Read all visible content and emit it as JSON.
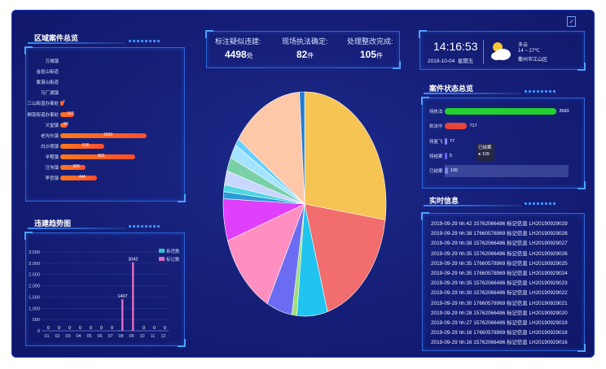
{
  "header": {
    "stats": [
      {
        "label": "标注疑似违建:",
        "value": "4498",
        "unit": "处"
      },
      {
        "label": "现场执法确定:",
        "value": "82",
        "unit": "件"
      },
      {
        "label": "处理整改完成:",
        "value": "105",
        "unit": "件"
      }
    ]
  },
  "clock": {
    "time": "14:16:53",
    "date": "2019-10-04",
    "weekday": "星期五"
  },
  "weather": {
    "condition": "多云",
    "temp": "14 ~ 27℃",
    "location": "衢州市江山区",
    "icon": "cloud-sun-icon"
  },
  "region_panel": {
    "title": "区域案件总览",
    "items": [
      {
        "name": "万城镇",
        "value": null
      },
      {
        "name": "金垣山街道",
        "value": null
      },
      {
        "name": "紫港山街道",
        "value": null
      },
      {
        "name": "马厂湖镇",
        "value": null
      },
      {
        "name": "三山街道办事处",
        "value": 7
      },
      {
        "name": "柳南街道办事处",
        "value": 163
      },
      {
        "name": "义堂镇",
        "value": 84
      },
      {
        "name": "老沟头镇",
        "value": 1039
      },
      {
        "name": "白沙塔镇",
        "value": 536
      },
      {
        "name": "半程镇",
        "value": 903
      },
      {
        "name": "汪沟镇",
        "value": 306
      },
      {
        "name": "李官镇",
        "value": 444
      }
    ],
    "max": 1200
  },
  "trend_panel": {
    "title": "违建趋势图",
    "legend": [
      {
        "name": "拆违数",
        "color": "#2ec7c9"
      },
      {
        "name": "标记数",
        "color": "#d66ac0"
      }
    ],
    "chart_data": {
      "type": "bar",
      "categories": [
        "01",
        "02",
        "03",
        "04",
        "05",
        "06",
        "07",
        "08",
        "09",
        "10",
        "11",
        "12"
      ],
      "series": [
        {
          "name": "拆违数",
          "values": [
            0,
            0,
            0,
            0,
            0,
            0,
            0,
            17,
            18,
            0,
            0,
            0
          ]
        },
        {
          "name": "标记数",
          "values": [
            0,
            0,
            0,
            0,
            0,
            0,
            0,
            1407,
            3042,
            0,
            0,
            0
          ]
        }
      ],
      "labels": [
        "0",
        "0",
        "0",
        "0",
        "0",
        "0",
        "0",
        "1407",
        "3042",
        "0",
        "0",
        "0"
      ],
      "yticks": [
        "0",
        "500",
        "1,000",
        "1,500",
        "2,000",
        "2,500",
        "3,000",
        "3,500"
      ],
      "ylim": [
        0,
        3500
      ]
    }
  },
  "pie": {
    "chart_data": {
      "type": "pie",
      "values": [
        27,
        18,
        6,
        1,
        5,
        12,
        6,
        1,
        1,
        2,
        2,
        2,
        1,
        14,
        1
      ],
      "colors": [
        "#f5c452",
        "#f26d6d",
        "#1fc4ef",
        "#9ee07a",
        "#6c6cf2",
        "#ff8fc0",
        "#e040fb",
        "#2b9bd8",
        "#4fd6e0",
        "#c9d6ff",
        "#7ad1a8",
        "#a3e3ff",
        "#67d0ff",
        "#ffc8a8",
        "#1e7bd6"
      ]
    }
  },
  "status_panel": {
    "title": "案件状态总览",
    "items": [
      {
        "name": "待执法",
        "value": 3583,
        "color": "#23d12e"
      },
      {
        "name": "执法中",
        "value": 717,
        "color": "#e8443a"
      },
      {
        "name": "待复飞",
        "value": 77,
        "color": "#8a84ff"
      },
      {
        "name": "待结案",
        "value": 5,
        "color": "#6a6aff"
      },
      {
        "name": "已结案",
        "value": 105,
        "color": "#7a86d8"
      }
    ],
    "max": 3600,
    "tooltip": {
      "title": "已结案",
      "value": "● 105"
    }
  },
  "realtime_panel": {
    "title": "实时信息",
    "logs": [
      "2019-09-29 hh:42 15762066486 标记信息 LH20190929029",
      "2019-09-29 hh:38 17660578969 标记信息 LH20190929028",
      "2019-09-29 hh:38 15762066486 标记信息 LH20190929027",
      "2019-09-29 hh:35 15762066486 标记信息 LH20190929026",
      "2019-09-29 hh:35 17660578969 标记信息 LH20190929025",
      "2019-09-29 hh:35 17660578969 标记信息 LH20190929024",
      "2019-09-29 hh:35 15762066486 标记信息 LH20190929023",
      "2019-09-29 hh:30 15762066486 标记信息 LH20190929022",
      "2019-09-29 hh:30 17660578969 标记信息 LH20190929021",
      "2019-09-29 hh:28 15762066486 标记信息 LH20190929020",
      "2019-09-29 hh:27 15762066486 标记信息 LH20190929019",
      "2019-09-29 hh:16 17660578969 标记信息 LH20190929018",
      "2019-09-29 hh:16 15762066486 标记信息 LH20190929016"
    ]
  }
}
